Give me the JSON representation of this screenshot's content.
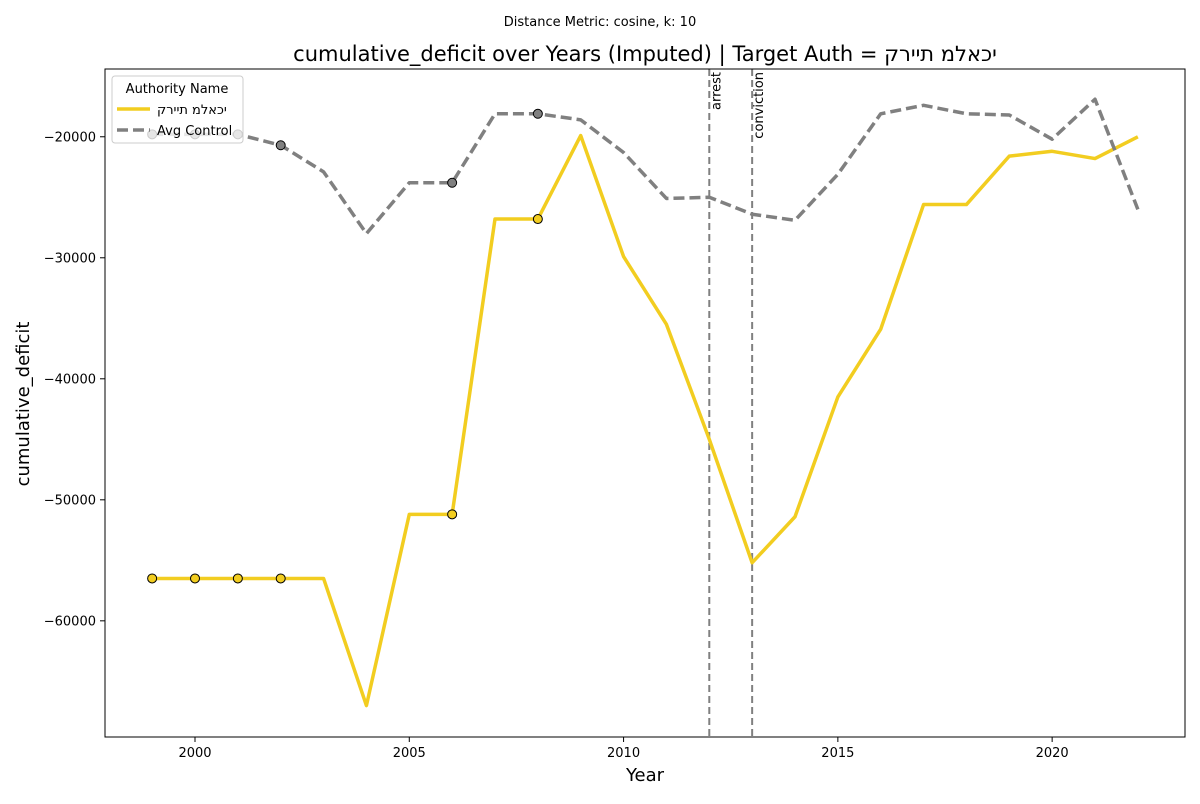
{
  "chart_data": {
    "type": "line",
    "suptitle": "Distance Metric: cosine, k: 10",
    "title": "cumulative_deficit over Years (Imputed) | Target Auth = יכאלמ תיירק",
    "xlabel": "Year",
    "ylabel": "cumulative_deficit",
    "xlim": [
      1997.9,
      2023.1
    ],
    "ylim": [
      -69600,
      -14400
    ],
    "x_ticks": [
      2000,
      2005,
      2010,
      2015,
      2020
    ],
    "y_ticks": [
      -60000,
      -50000,
      -40000,
      -30000,
      -20000
    ],
    "x_tick_labels": [
      "2000",
      "2005",
      "2010",
      "2015",
      "2020"
    ],
    "y_tick_labels": [
      "−60000",
      "−50000",
      "−40000",
      "−30000",
      "−20000"
    ],
    "grid": false,
    "legend": {
      "title": "Authority Name",
      "placement": "top-left"
    },
    "x": [
      1999,
      2000,
      2001,
      2002,
      2003,
      2004,
      2005,
      2006,
      2007,
      2008,
      2009,
      2010,
      2011,
      2012,
      2013,
      2014,
      2015,
      2016,
      2017,
      2018,
      2019,
      2020,
      2021,
      2022
    ],
    "series": [
      {
        "name": "יכאלמ תיירק",
        "color": "#f2cd20",
        "style": "solid",
        "values": [
          -56500,
          -56500,
          -56500,
          -56500,
          -56500,
          -67000,
          -51200,
          -51200,
          -26800,
          -26800,
          -19900,
          -29900,
          -35500,
          -45000,
          -55200,
          -51400,
          -41500,
          -35900,
          -25600,
          -25600,
          -21600,
          -21200,
          -21800,
          -20000
        ],
        "imputed_x": [
          1999,
          2000,
          2001,
          2002,
          2006,
          2008
        ]
      },
      {
        "name": "Avg Control",
        "color": "#808080",
        "style": "dashed",
        "values": [
          -19800,
          -19800,
          -19800,
          -20700,
          -22900,
          -28000,
          -23800,
          -23800,
          -18100,
          -18100,
          -18600,
          -21300,
          -25100,
          -25000,
          -26400,
          -26900,
          -23100,
          -18100,
          -17400,
          -18100,
          -18200,
          -20200,
          -16900,
          -26000
        ],
        "imputed_x": [
          1999,
          2000,
          2001,
          2002,
          2006,
          2008
        ]
      }
    ],
    "annotations": [
      {
        "label": "arrest",
        "x": 2012
      },
      {
        "label": "conviction",
        "x": 2013
      }
    ]
  }
}
